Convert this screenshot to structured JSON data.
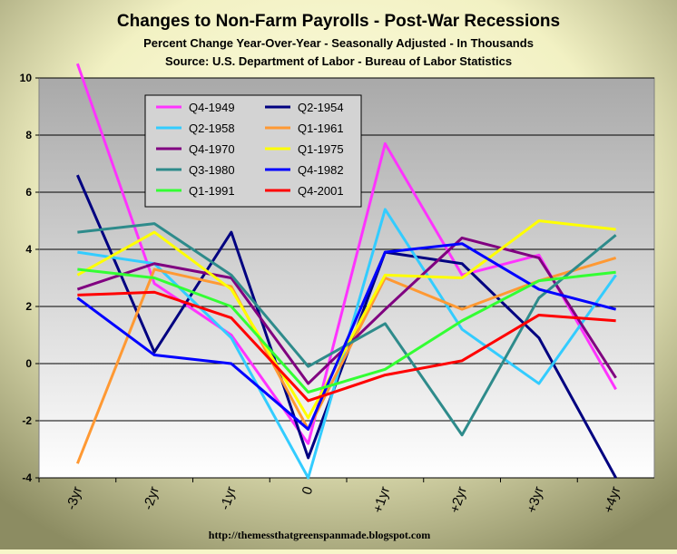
{
  "chart_data": {
    "type": "line",
    "title": "Changes to Non-Farm Payrolls - Post-War Recessions",
    "subtitle_lines": [
      "Percent Change Year-Over-Year - Seasonally Adjusted - In Thousands",
      "Source: U.S. Department of Labor - Bureau of Labor Statistics"
    ],
    "footer": "http://themessthatgreenspanmade.blogspot.com",
    "categories": [
      "-3yr",
      "-2yr",
      "-1yr",
      "0",
      "+1yr",
      "+2yr",
      "+3yr",
      "+4yr"
    ],
    "ylim": [
      -4,
      10
    ],
    "yticks": [
      -4,
      -2,
      0,
      2,
      4,
      6,
      8,
      10
    ],
    "grid": true,
    "legend_position": "top-left",
    "series": [
      {
        "name": "Q4-1949",
        "color": "#ff33ff",
        "values": [
          10.5,
          2.8,
          1.0,
          -2.8,
          7.7,
          3.1,
          3.8,
          -0.9
        ]
      },
      {
        "name": "Q2-1954",
        "color": "#000080",
        "values": [
          6.6,
          0.4,
          4.6,
          -3.3,
          3.9,
          3.5,
          0.9,
          -4.0
        ]
      },
      {
        "name": "Q2-1958",
        "color": "#33ccff",
        "values": [
          3.9,
          3.5,
          0.9,
          -4.0,
          5.4,
          1.2,
          -0.7,
          3.1
        ]
      },
      {
        "name": "Q1-1961",
        "color": "#ff9933",
        "values": [
          -3.5,
          3.3,
          2.7,
          -2.3,
          3.0,
          1.9,
          2.9,
          3.7
        ]
      },
      {
        "name": "Q4-1970",
        "color": "#800080",
        "values": [
          2.6,
          3.5,
          3.0,
          -0.7,
          1.9,
          4.4,
          3.7,
          -0.5
        ]
      },
      {
        "name": "Q1-1975",
        "color": "#ffff00",
        "values": [
          3.1,
          4.6,
          2.6,
          -1.9,
          3.1,
          3.0,
          5.0,
          4.7
        ]
      },
      {
        "name": "Q3-1980",
        "color": "#2e8b8b",
        "values": [
          4.6,
          4.9,
          3.1,
          -0.1,
          1.4,
          -2.5,
          2.3,
          4.5
        ]
      },
      {
        "name": "Q4-1982",
        "color": "#0000ff",
        "values": [
          2.3,
          0.3,
          0.0,
          -2.3,
          3.9,
          4.2,
          2.6,
          1.9
        ]
      },
      {
        "name": "Q1-1991",
        "color": "#33ff33",
        "values": [
          3.3,
          3.0,
          2.0,
          -1.0,
          -0.2,
          1.5,
          2.9,
          3.2
        ]
      },
      {
        "name": "Q4-2001",
        "color": "#ff0000",
        "values": [
          2.4,
          2.5,
          1.6,
          -1.3,
          -0.4,
          0.1,
          1.7,
          1.5
        ]
      }
    ]
  }
}
